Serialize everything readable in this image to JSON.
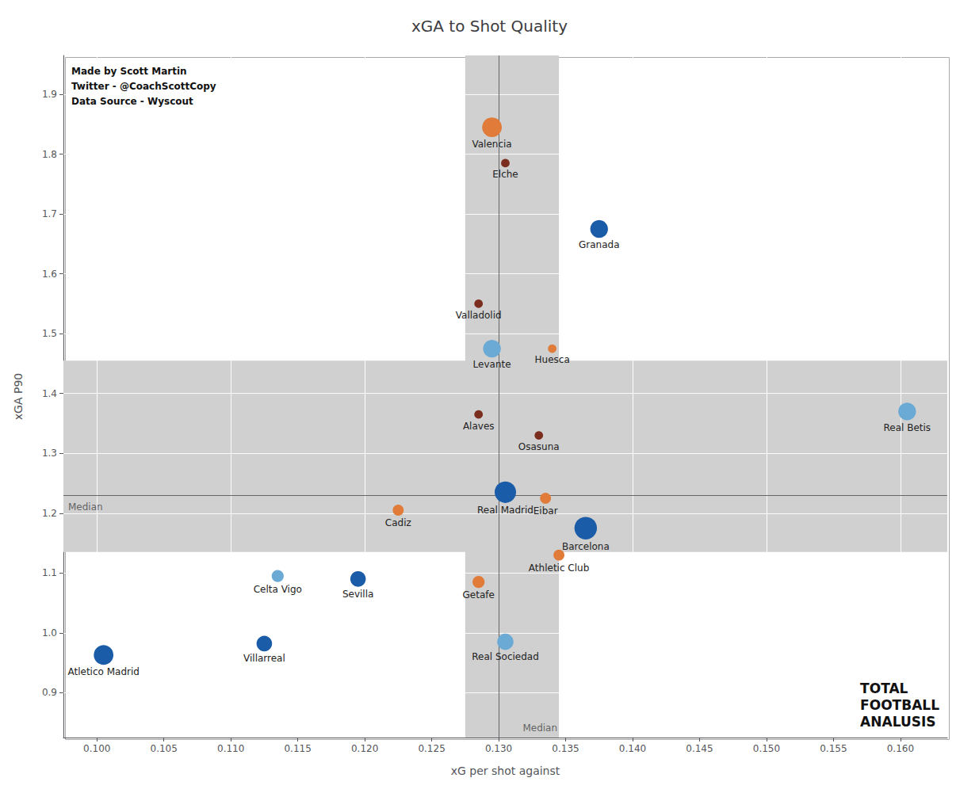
{
  "chart_data": {
    "type": "scatter",
    "title": "xGA to Shot Quality",
    "xlabel": "xG per shot against",
    "ylabel": "xGA P90",
    "labels": [
      "Atletico Madrid",
      "Villarreal",
      "Celta Vigo",
      "Sevilla",
      "Cadiz",
      "Real Madrid",
      "Eibar",
      "Barcelona",
      "Athletic Club",
      "Getafe",
      "Real Sociedad",
      "Levante",
      "Huesca",
      "Alaves",
      "Osasuna",
      "Real Betis",
      "Granada",
      "Valladolid",
      "Elche",
      "Valencia"
    ],
    "x": [
      0.1005,
      0.1125,
      0.1135,
      0.1195,
      0.1225,
      0.1305,
      0.1335,
      0.1365,
      0.1345,
      0.1285,
      0.1305,
      0.1295,
      0.134,
      0.1285,
      0.133,
      0.1605,
      0.1375,
      0.1285,
      0.1305,
      0.1295
    ],
    "values": [
      0.963,
      0.982,
      1.095,
      1.09,
      1.205,
      1.235,
      1.225,
      1.175,
      1.13,
      1.085,
      0.985,
      1.475,
      1.475,
      1.365,
      1.33,
      1.37,
      1.675,
      1.55,
      1.785,
      1.845
    ],
    "sizes": [
      320,
      200,
      120,
      200,
      100,
      380,
      100,
      420,
      100,
      120,
      220,
      260,
      60,
      60,
      60,
      260,
      260,
      60,
      60,
      320
    ],
    "colors": [
      "#1a5ca8",
      "#1a5ca8",
      "#6aaad4",
      "#1a5ca8",
      "#e07b39",
      "#1a5ca8",
      "#e07b39",
      "#1a5ca8",
      "#e07b39",
      "#e07b39",
      "#6aaad4",
      "#6aaad4",
      "#e07b39",
      "#7b2d1e",
      "#7b2d1e",
      "#6aaad4",
      "#1a5ca8",
      "#7b2d1e",
      "#7b2d1e",
      "#e07b39"
    ],
    "xlim": [
      0.0975,
      0.1635
    ],
    "xticks": [
      {
        "value": 0.1,
        "label": "0.100"
      },
      0.105,
      {
        "value": 0.11,
        "label": "0.110"
      },
      0.115,
      {
        "value": 0.12,
        "label": "0.120"
      },
      0.125,
      {
        "value": 0.13,
        "label": "0.130"
      },
      0.135,
      {
        "value": 0.14,
        "label": "0.140"
      },
      0.145,
      {
        "value": 0.15,
        "label": "0.150"
      },
      0.155,
      {
        "value": 0.16,
        "label": "0.160"
      }
    ],
    "ylim": [
      0.825,
      1.965
    ],
    "yticks": [
      0.9,
      {
        "value": 1.0,
        "label": "1.0"
      },
      1.1,
      1.2,
      1.3,
      1.4,
      1.5,
      1.6,
      1.7,
      1.8,
      1.9
    ],
    "grid": true,
    "bands": {
      "x": [
        0.1275,
        0.1345
      ],
      "y": [
        1.135,
        1.455
      ],
      "color": "#d0d0d0"
    },
    "medians": {
      "x": 0.1315,
      "y": 1.225,
      "label": "Median",
      "color": "#666666"
    },
    "annotations": [
      "Made by Scott Martin\nTwitter - @CoachScottCopy\nData Source - Wyscout",
      "TOTAL\nFOOTBALL\nANALUSIS"
    ]
  }
}
